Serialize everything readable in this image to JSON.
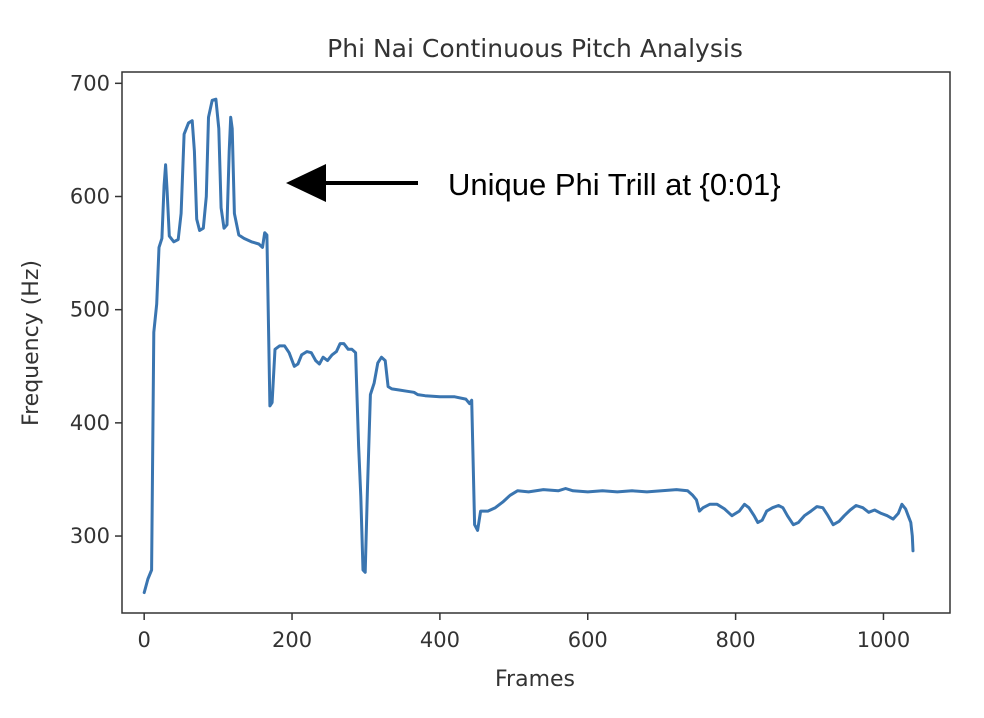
{
  "chart_data": {
    "type": "line",
    "title": "Phi Nai Continuous Pitch Analysis",
    "xlabel": "Frames",
    "ylabel": "Frequency (Hz)",
    "xlim": [
      -30,
      1090
    ],
    "ylim": [
      232,
      710
    ],
    "xticks": [
      0,
      200,
      400,
      600,
      800,
      1000
    ],
    "yticks": [
      300,
      400,
      500,
      600,
      700
    ],
    "grid": false,
    "series": [
      {
        "color": "#3a75b0",
        "points": [
          [
            0,
            250
          ],
          [
            5,
            262
          ],
          [
            10,
            270
          ],
          [
            13,
            480
          ],
          [
            17,
            505
          ],
          [
            20,
            555
          ],
          [
            24,
            563
          ],
          [
            27,
            610
          ],
          [
            29,
            628
          ],
          [
            31,
            605
          ],
          [
            34,
            565
          ],
          [
            40,
            560
          ],
          [
            46,
            562
          ],
          [
            50,
            585
          ],
          [
            54,
            655
          ],
          [
            60,
            665
          ],
          [
            65,
            667
          ],
          [
            68,
            640
          ],
          [
            71,
            580
          ],
          [
            75,
            570
          ],
          [
            80,
            572
          ],
          [
            84,
            600
          ],
          [
            87,
            670
          ],
          [
            92,
            685
          ],
          [
            97,
            686
          ],
          [
            101,
            660
          ],
          [
            104,
            590
          ],
          [
            108,
            572
          ],
          [
            112,
            575
          ],
          [
            115,
            640
          ],
          [
            117,
            670
          ],
          [
            119,
            660
          ],
          [
            122,
            585
          ],
          [
            128,
            566
          ],
          [
            135,
            563
          ],
          [
            145,
            560
          ],
          [
            155,
            558
          ],
          [
            160,
            555
          ],
          [
            163,
            568
          ],
          [
            166,
            566
          ],
          [
            170,
            415
          ],
          [
            173,
            418
          ],
          [
            177,
            465
          ],
          [
            183,
            468
          ],
          [
            190,
            468
          ],
          [
            196,
            462
          ],
          [
            203,
            450
          ],
          [
            208,
            452
          ],
          [
            213,
            460
          ],
          [
            220,
            463
          ],
          [
            226,
            462
          ],
          [
            232,
            455
          ],
          [
            237,
            452
          ],
          [
            242,
            458
          ],
          [
            248,
            455
          ],
          [
            254,
            460
          ],
          [
            260,
            463
          ],
          [
            265,
            470
          ],
          [
            270,
            470
          ],
          [
            276,
            465
          ],
          [
            281,
            465
          ],
          [
            286,
            462
          ],
          [
            290,
            380
          ],
          [
            293,
            335
          ],
          [
            296,
            270
          ],
          [
            299,
            268
          ],
          [
            302,
            340
          ],
          [
            306,
            425
          ],
          [
            311,
            435
          ],
          [
            316,
            453
          ],
          [
            321,
            458
          ],
          [
            326,
            455
          ],
          [
            330,
            432
          ],
          [
            335,
            430
          ],
          [
            345,
            429
          ],
          [
            355,
            428
          ],
          [
            365,
            427
          ],
          [
            370,
            425
          ],
          [
            380,
            424
          ],
          [
            400,
            423
          ],
          [
            420,
            423
          ],
          [
            435,
            421
          ],
          [
            440,
            417
          ],
          [
            443,
            420
          ],
          [
            447,
            310
          ],
          [
            451,
            305
          ],
          [
            455,
            322
          ],
          [
            465,
            322
          ],
          [
            475,
            325
          ],
          [
            485,
            330
          ],
          [
            495,
            336
          ],
          [
            505,
            340
          ],
          [
            520,
            339
          ],
          [
            540,
            341
          ],
          [
            560,
            340
          ],
          [
            570,
            342
          ],
          [
            580,
            340
          ],
          [
            600,
            339
          ],
          [
            620,
            340
          ],
          [
            640,
            339
          ],
          [
            660,
            340
          ],
          [
            680,
            339
          ],
          [
            700,
            340
          ],
          [
            720,
            341
          ],
          [
            735,
            340
          ],
          [
            742,
            336
          ],
          [
            747,
            332
          ],
          [
            751,
            322
          ],
          [
            756,
            325
          ],
          [
            765,
            328
          ],
          [
            775,
            328
          ],
          [
            785,
            324
          ],
          [
            795,
            318
          ],
          [
            805,
            322
          ],
          [
            812,
            328
          ],
          [
            818,
            325
          ],
          [
            825,
            318
          ],
          [
            830,
            312
          ],
          [
            836,
            314
          ],
          [
            842,
            322
          ],
          [
            850,
            325
          ],
          [
            858,
            327
          ],
          [
            864,
            325
          ],
          [
            870,
            318
          ],
          [
            878,
            310
          ],
          [
            885,
            312
          ],
          [
            893,
            318
          ],
          [
            902,
            322
          ],
          [
            910,
            326
          ],
          [
            918,
            325
          ],
          [
            925,
            318
          ],
          [
            932,
            310
          ],
          [
            940,
            313
          ],
          [
            947,
            318
          ],
          [
            955,
            323
          ],
          [
            963,
            327
          ],
          [
            972,
            325
          ],
          [
            980,
            321
          ],
          [
            988,
            323
          ],
          [
            997,
            320
          ],
          [
            1005,
            318
          ],
          [
            1013,
            315
          ],
          [
            1020,
            320
          ],
          [
            1025,
            328
          ],
          [
            1030,
            324
          ],
          [
            1034,
            317
          ],
          [
            1037,
            312
          ],
          [
            1039,
            300
          ],
          [
            1040,
            287
          ]
        ]
      }
    ],
    "annotations": [
      {
        "text": "Unique Phi Trill at {0:01}",
        "arrow": "left"
      }
    ]
  }
}
